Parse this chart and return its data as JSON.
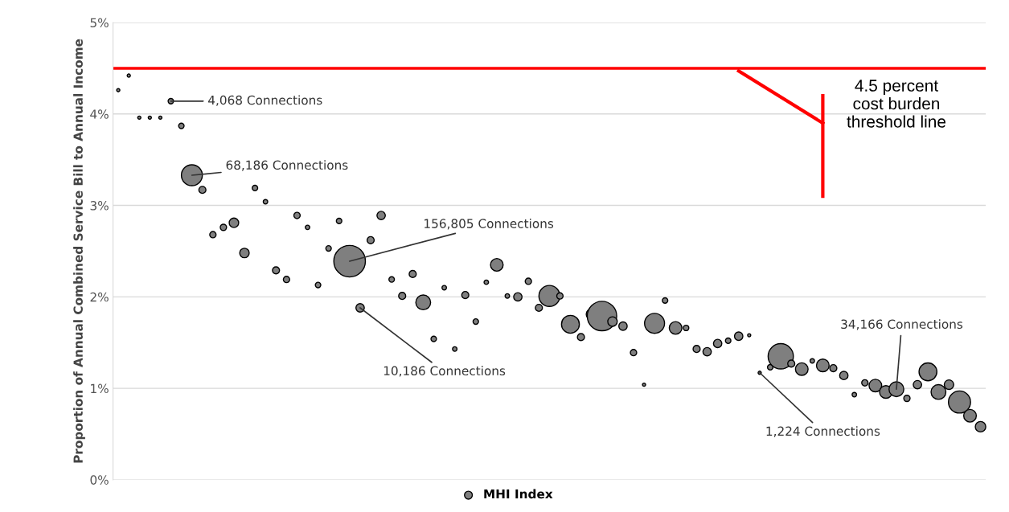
{
  "chart_data": {
    "type": "bubble",
    "ylabel": "Proportion of Annual Combined Service Bill to Annual Income",
    "categories": [
      null,
      null,
      null,
      null,
      null,
      null,
      null,
      null,
      null,
      null,
      null,
      null,
      null,
      null,
      null,
      null,
      null,
      null,
      null,
      null,
      null,
      null,
      null,
      null,
      null,
      null,
      null,
      null,
      null,
      null,
      null,
      null,
      null,
      null,
      null,
      null,
      null,
      null,
      null,
      null,
      null,
      null,
      null,
      null,
      null,
      null,
      null,
      null,
      null,
      null,
      null,
      null,
      null,
      null,
      null,
      null,
      null,
      null,
      null,
      null,
      null,
      null,
      null,
      null,
      null,
      null,
      null,
      null,
      null,
      null,
      null,
      null,
      null,
      null,
      null,
      null,
      null,
      null,
      null,
      null,
      null,
      null,
      null
    ],
    "series": [
      {
        "name": "MHI Index",
        "color": "#7f7f7f",
        "values": [
          4.26,
          4.42,
          3.96,
          3.96,
          3.96,
          4.14,
          3.87,
          3.33,
          3.17,
          2.68,
          2.76,
          2.81,
          2.48,
          3.19,
          3.04,
          2.29,
          2.19,
          2.89,
          2.76,
          2.13,
          2.53,
          2.83,
          2.39,
          1.88,
          2.62,
          2.89,
          2.19,
          2.01,
          2.25,
          1.94,
          1.54,
          2.1,
          1.43,
          2.02,
          1.73,
          2.16,
          2.35,
          2.01,
          2.0,
          2.17,
          1.88,
          2.01,
          2.01,
          1.7,
          1.56,
          1.81,
          1.79,
          1.73,
          1.68,
          1.39,
          1.04,
          1.71,
          1.96,
          1.66,
          1.66,
          1.43,
          1.4,
          1.49,
          1.52,
          1.57,
          1.58,
          1.17,
          1.23,
          1.35,
          1.27,
          1.21,
          1.3,
          1.25,
          1.22,
          1.14,
          0.93,
          1.06,
          1.03,
          0.96,
          0.99,
          0.89,
          1.04,
          1.18,
          0.96,
          1.04,
          0.85,
          0.7,
          0.58
        ],
        "sizes": [
          0.01,
          0.01,
          0.01,
          0.01,
          0.01,
          0.03,
          0.03,
          0.44,
          0.05,
          0.04,
          0.04,
          0.09,
          0.09,
          0.03,
          0.02,
          0.05,
          0.04,
          0.04,
          0.02,
          0.03,
          0.03,
          0.03,
          1,
          0.07,
          0.05,
          0.07,
          0.03,
          0.05,
          0.05,
          0.22,
          0.03,
          0.02,
          0.02,
          0.05,
          0.03,
          0.02,
          0.16,
          0.02,
          0.07,
          0.04,
          0.05,
          0.44,
          0.04,
          0.32,
          0.05,
          0.11,
          0.87,
          0.09,
          0.07,
          0.04,
          0.01,
          0.4,
          0.03,
          0.16,
          0.03,
          0.05,
          0.07,
          0.07,
          0.03,
          0.07,
          0.01,
          0.01,
          0.03,
          0.64,
          0.05,
          0.16,
          0.02,
          0.16,
          0.05,
          0.07,
          0.02,
          0.04,
          0.16,
          0.16,
          0.22,
          0.04,
          0.07,
          0.32,
          0.22,
          0.09,
          0.49,
          0.16,
          0.11
        ]
      }
    ],
    "ylim": [
      0,
      5
    ],
    "yticks": [
      {
        "value": 0,
        "label": "0%"
      },
      {
        "value": 1,
        "label": "1%"
      },
      {
        "value": 2,
        "label": "2%"
      },
      {
        "value": 3,
        "label": "3%"
      },
      {
        "value": 4,
        "label": "4%"
      },
      {
        "value": 5,
        "label": "5%"
      }
    ],
    "ref_lines": [
      {
        "axis": "y",
        "value": 4.5,
        "label": "4.5 percent\ncost burden\nthreshold line",
        "color": "#ff0000"
      }
    ],
    "annotations": [
      "4,068 Connections",
      "68,186 Connections",
      "156,805 Connections",
      "10,186 Connections",
      "1,224 Connections",
      "34,166 Connections"
    ],
    "grid": "y",
    "legend": "bottom",
    "marker": "circle",
    "tick_labels": "y"
  }
}
